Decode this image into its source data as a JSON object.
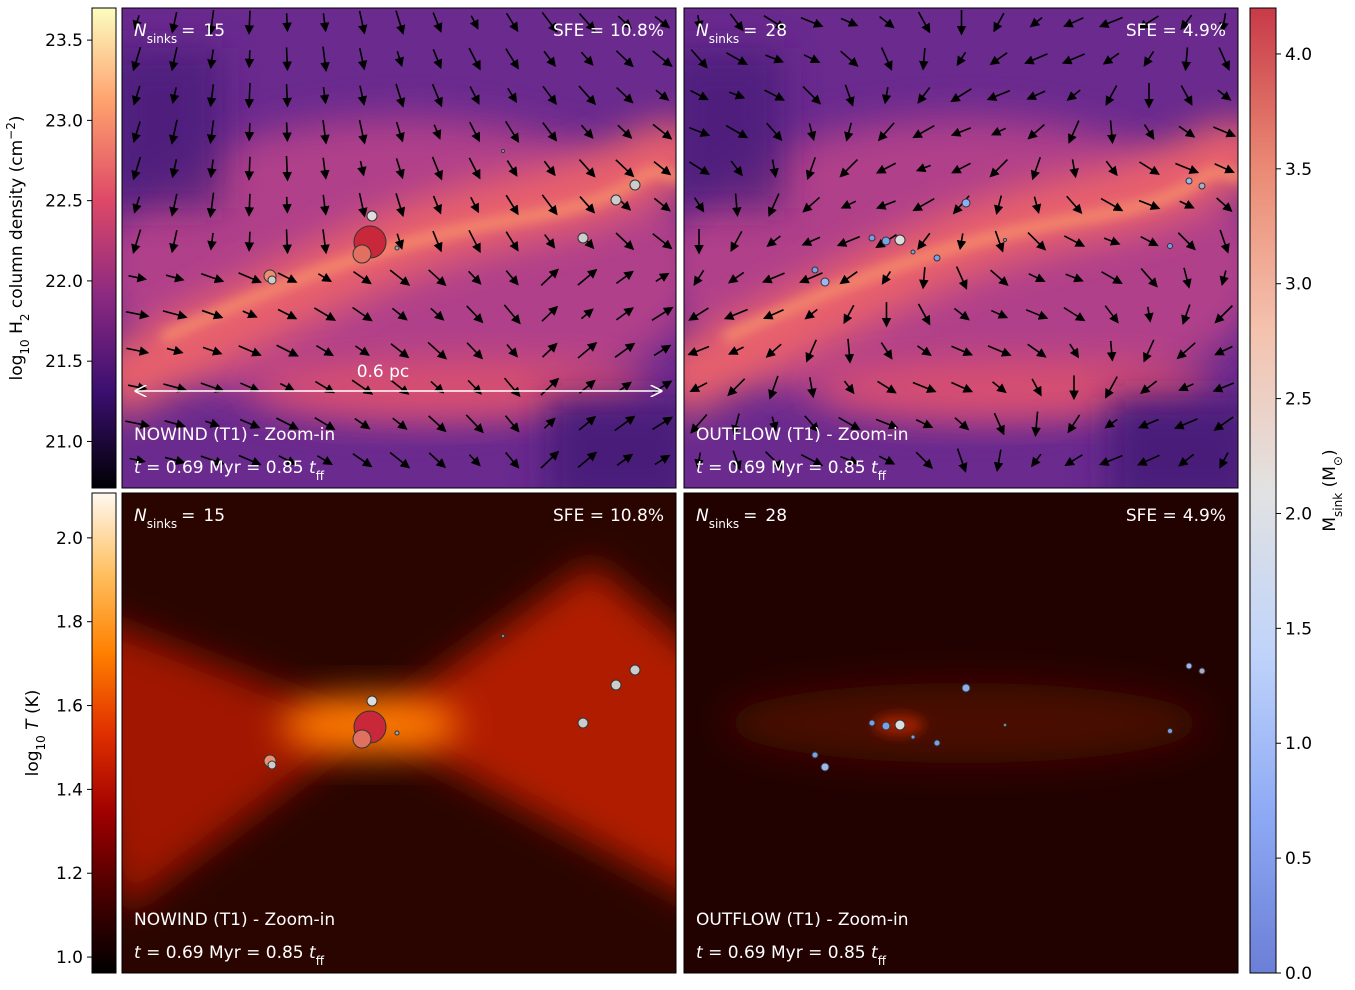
{
  "labels": {
    "n_sinks": [
      "N",
      "sinks",
      "="
    ],
    "sfe": "SFE =",
    "time": [
      "t",
      " = 0.69 Myr = 0.85 ",
      "t",
      "ff"
    ],
    "scale_bar": "0.6 pc"
  },
  "panels": [
    {
      "n_sinks": 15,
      "sfe": "10.8%",
      "run": "NOWIND (T1) - Zoom-in"
    },
    {
      "n_sinks": 28,
      "sfe": "4.9%",
      "run": "OUTFLOW (T1) - Zoom-in"
    },
    {
      "n_sinks": 15,
      "sfe": "10.8%",
      "run": "NOWIND (T1) - Zoom-in"
    },
    {
      "n_sinks": 28,
      "sfe": "4.9%",
      "run": "OUTFLOW (T1) - Zoom-in"
    }
  ],
  "colorbars": [
    {
      "label": [
        "log",
        "10",
        " H",
        "2",
        " column density (cm",
        "−2",
        ")"
      ],
      "lim": [
        20.71,
        23.7
      ],
      "ticks": [
        {
          "value": 21,
          "label": "21.0"
        },
        {
          "value": 21.5,
          "label": "21.5"
        },
        {
          "value": 22,
          "label": "22.0"
        },
        {
          "value": 22.5,
          "label": "22.5"
        },
        {
          "value": 23,
          "label": "23.0"
        },
        {
          "value": 23.5,
          "label": "23.5"
        }
      ],
      "colors": [
        "#000004",
        "#3b0f70",
        "#8c2981",
        "#de4968",
        "#fe9f6d",
        "#fcfdbf"
      ]
    },
    {
      "label": [
        "log",
        "10",
        " ",
        "T",
        " (K)"
      ],
      "lim": [
        0.962,
        2.107
      ],
      "ticks": [
        {
          "value": 1,
          "label": "1.0"
        },
        {
          "value": 1.2,
          "label": "1.2"
        },
        {
          "value": 1.4,
          "label": "1.4"
        },
        {
          "value": 1.6,
          "label": "1.6"
        },
        {
          "value": 1.8,
          "label": "1.8"
        },
        {
          "value": 2,
          "label": "2.0"
        }
      ],
      "colors": [
        "#000000",
        "#4a0000",
        "#a00000",
        "#e03000",
        "#ff8000",
        "#ffc060",
        "#fff8f0"
      ]
    },
    {
      "label": [
        "M",
        "sink",
        " (M",
        "⊙",
        ")"
      ],
      "lim": [
        0,
        4.2
      ],
      "ticks": [
        {
          "value": 0,
          "label": "0.0"
        },
        {
          "value": 0.5,
          "label": "0.5"
        },
        {
          "value": 1,
          "label": "1.0"
        },
        {
          "value": 1.5,
          "label": "1.5"
        },
        {
          "value": 2,
          "label": "2.0"
        },
        {
          "value": 2.5,
          "label": "2.5"
        },
        {
          "value": 3,
          "label": "3.0"
        },
        {
          "value": 3.5,
          "label": "3.5"
        },
        {
          "value": 4,
          "label": "4.0"
        }
      ],
      "colors": [
        "#6b7fd6",
        "#8eaaf5",
        "#c0d4fa",
        "#e2e2e2",
        "#f4c2ae",
        "#ea8a74",
        "#c83a48"
      ]
    }
  ]
}
